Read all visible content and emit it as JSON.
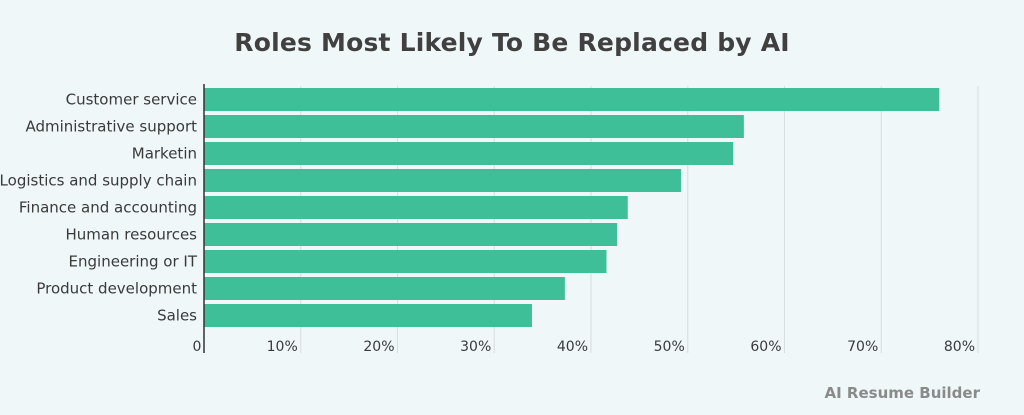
{
  "title": "Roles Most Likely To Be Replaced by AI",
  "brand": "AI Resume Builder",
  "colors": {
    "bar": "#3fbf98",
    "grid": "#d9dedf",
    "axis": "#333333",
    "background": "#eff7f8"
  },
  "chart_data": {
    "type": "bar",
    "orientation": "horizontal",
    "categories": [
      "Customer service",
      "Administrative support",
      "Marketin",
      "Logistics and supply chain",
      "Finance and accounting",
      "Human resources",
      "Engineering or IT",
      "Product development",
      "Sales"
    ],
    "values": [
      76,
      55.8,
      54.7,
      49.3,
      43.8,
      42.7,
      41.6,
      37.3,
      33.9
    ],
    "xlim": [
      0,
      80
    ],
    "ticks": [
      0,
      10,
      20,
      30,
      40,
      50,
      60,
      70,
      80
    ],
    "tick_labels": [
      "0",
      "10%",
      "20%",
      "30%",
      "40%",
      "50%",
      "60%",
      "70%",
      "80%"
    ],
    "grid": true,
    "xlabel": "",
    "ylabel": ""
  }
}
